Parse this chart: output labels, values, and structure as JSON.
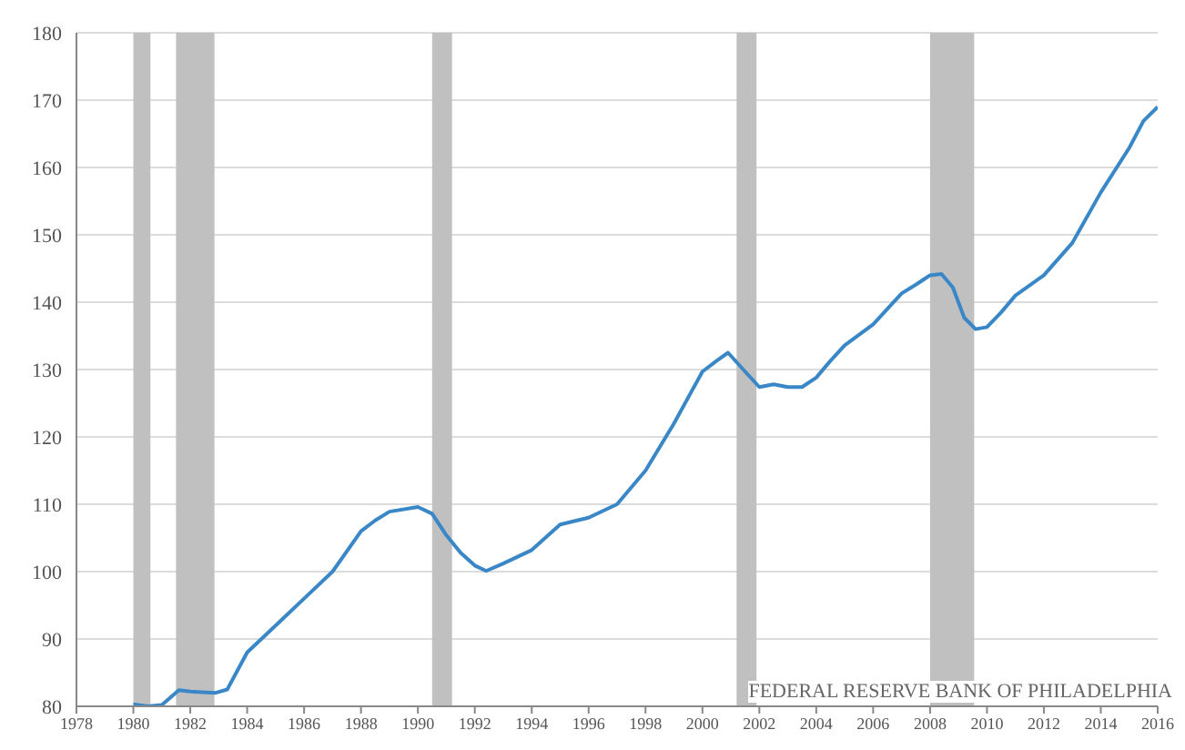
{
  "chart_data": {
    "type": "line",
    "x": [
      1980,
      1980.5,
      1981,
      1981.6,
      1982,
      1982.4,
      1982.9,
      1983.3,
      1984,
      1985,
      1986,
      1987,
      1988,
      1988.5,
      1989,
      1990,
      1990.5,
      1991,
      1991.5,
      1992,
      1992.4,
      1993,
      1994,
      1995,
      1996,
      1997,
      1998,
      1999,
      2000,
      2000.5,
      2000.9,
      2001.5,
      2002,
      2002.5,
      2003,
      2003.5,
      2004,
      2004.5,
      2005,
      2006,
      2007,
      2007.5,
      2008,
      2008.4,
      2008.8,
      2009.2,
      2009.6,
      2010,
      2010.5,
      2011,
      2012,
      2013,
      2014,
      2015,
      2015.5,
      2016
    ],
    "series": [
      {
        "color": "#3a87c8",
        "values": [
          80.3,
          80,
          80.2,
          82.4,
          82.2,
          82.1,
          82,
          82.5,
          88,
          92,
          96,
          100,
          106,
          107.6,
          108.9,
          109.6,
          108.6,
          105.4,
          102.8,
          100.9,
          100.1,
          101.2,
          103.2,
          107,
          108,
          110,
          115,
          122,
          129.7,
          131.3,
          132.5,
          129.7,
          127.4,
          127.8,
          127.4,
          127.4,
          128.8,
          131.3,
          133.6,
          136.7,
          141.3,
          142.6,
          144,
          144.2,
          142.2,
          137.7,
          136,
          136.3,
          138.5,
          141,
          144,
          148.8,
          156.3,
          162.9,
          166.9,
          169
        ]
      }
    ],
    "xlim": [
      1978,
      2016
    ],
    "xticks": [
      1978,
      1980,
      1982,
      1984,
      1986,
      1988,
      1990,
      1992,
      1994,
      1996,
      1998,
      2000,
      2002,
      2004,
      2006,
      2008,
      2010,
      2012,
      2014,
      2016
    ],
    "ylim": [
      80,
      180
    ],
    "yticks": [
      80,
      90,
      100,
      110,
      120,
      130,
      140,
      150,
      160,
      170,
      180
    ],
    "grid": "y",
    "bands": [
      {
        "axis": "x",
        "from": 1980,
        "to": 1980.6,
        "color": "#c0c0c0"
      },
      {
        "axis": "x",
        "from": 1981.5,
        "to": 1982.85,
        "color": "#c0c0c0"
      },
      {
        "axis": "x",
        "from": 1990.5,
        "to": 1991.2,
        "color": "#c0c0c0"
      },
      {
        "axis": "x",
        "from": 2001.2,
        "to": 2001.9,
        "color": "#c0c0c0"
      },
      {
        "axis": "x",
        "from": 2008,
        "to": 2009.55,
        "color": "#c0c0c0"
      }
    ],
    "annotations": [
      "FEDERAL RESERVE BANK OF PHILADELPHIA"
    ]
  }
}
